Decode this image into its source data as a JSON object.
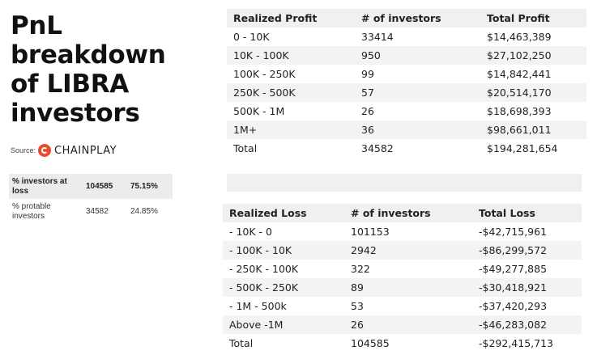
{
  "title_lines": [
    "PnL",
    "breakdown",
    "of LIBRA",
    "investors"
  ],
  "source": {
    "label": "Source:",
    "brand": "CHAINPLAY",
    "brand_color": "#e84d2b",
    "icon": "chainplay-logo-icon"
  },
  "summary": {
    "rows": [
      {
        "label": "% investors at loss",
        "count": "104585",
        "pct": "75.15%"
      },
      {
        "label": "% protable investors",
        "count": "34582",
        "pct": "24.85%"
      }
    ]
  },
  "profit_table": {
    "headers": [
      "Realized Profit",
      "# of investors",
      "Total Profit"
    ],
    "rows": [
      [
        "0 - 10K",
        "33414",
        "$14,463,389"
      ],
      [
        "10K - 100K",
        "950",
        "$27,102,250"
      ],
      [
        "100K - 250K",
        "99",
        "$14,842,441"
      ],
      [
        "250K - 500K",
        "57",
        "$20,514,170"
      ],
      [
        "500K - 1M",
        "26",
        "$18,698,393"
      ],
      [
        "1M+",
        "36",
        "$98,661,011"
      ],
      [
        "Total",
        "34582",
        "$194,281,654"
      ]
    ]
  },
  "loss_table": {
    "headers": [
      "Realized Loss",
      "# of investors",
      "Total Loss"
    ],
    "rows": [
      [
        "- 10K - 0",
        "101153",
        "-$42,715,961"
      ],
      [
        "- 100K - 10K",
        "2942",
        "-$86,299,572"
      ],
      [
        "- 250K - 100K",
        "322",
        "-$49,277,885"
      ],
      [
        "- 500K - 250K",
        "89",
        "-$30,418,921"
      ],
      [
        "- 1M - 500k",
        "53",
        "-$37,420,293"
      ],
      [
        "Above -1M",
        "26",
        "-$46,283,082"
      ],
      [
        "Total",
        "104585",
        "-$292,415,713"
      ]
    ]
  }
}
